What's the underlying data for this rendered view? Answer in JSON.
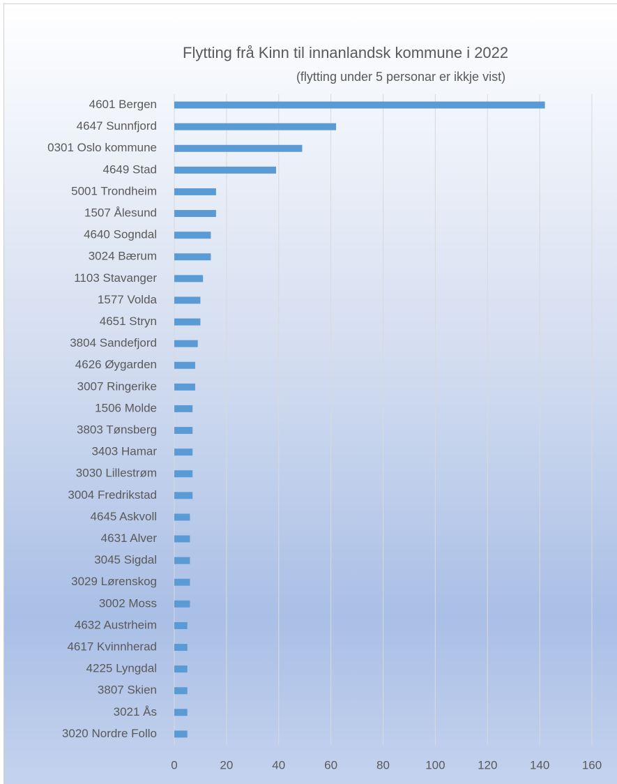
{
  "chart_data": {
    "type": "bar",
    "orientation": "horizontal",
    "title": "Flytting frå Kinn til innanlandsk kommune i 2022",
    "subtitle": "(flytting under 5 personar er ikkje vist)",
    "categories": [
      "4601 Bergen",
      "4647 Sunnfjord",
      "0301 Oslo kommune",
      "4649 Stad",
      "5001 Trondheim",
      "1507 Ålesund",
      "4640 Sogndal",
      "3024 Bærum",
      "1103 Stavanger",
      "1577 Volda",
      "4651 Stryn",
      "3804 Sandefjord",
      "4626 Øygarden",
      "3007 Ringerike",
      "1506 Molde",
      "3803 Tønsberg",
      "3403 Hamar",
      "3030 Lillestrøm",
      "3004 Fredrikstad",
      "4645 Askvoll",
      "4631 Alver",
      "3045 Sigdal",
      "3029 Lørenskog",
      "3002 Moss",
      "4632 Austrheim",
      "4617 Kvinnherad",
      "4225 Lyngdal",
      "3807 Skien",
      "3021 Ås",
      "3020 Nordre Follo"
    ],
    "values": [
      142,
      62,
      49,
      39,
      16,
      16,
      14,
      14,
      11,
      10,
      10,
      9,
      8,
      8,
      7,
      7,
      7,
      7,
      7,
      6,
      6,
      6,
      6,
      6,
      5,
      5,
      5,
      5,
      5,
      5
    ],
    "color": "#5b9bd5",
    "xlim": [
      0,
      160
    ],
    "xticks": [
      0,
      20,
      40,
      60,
      80,
      100,
      120,
      140,
      160
    ],
    "grid": true
  }
}
